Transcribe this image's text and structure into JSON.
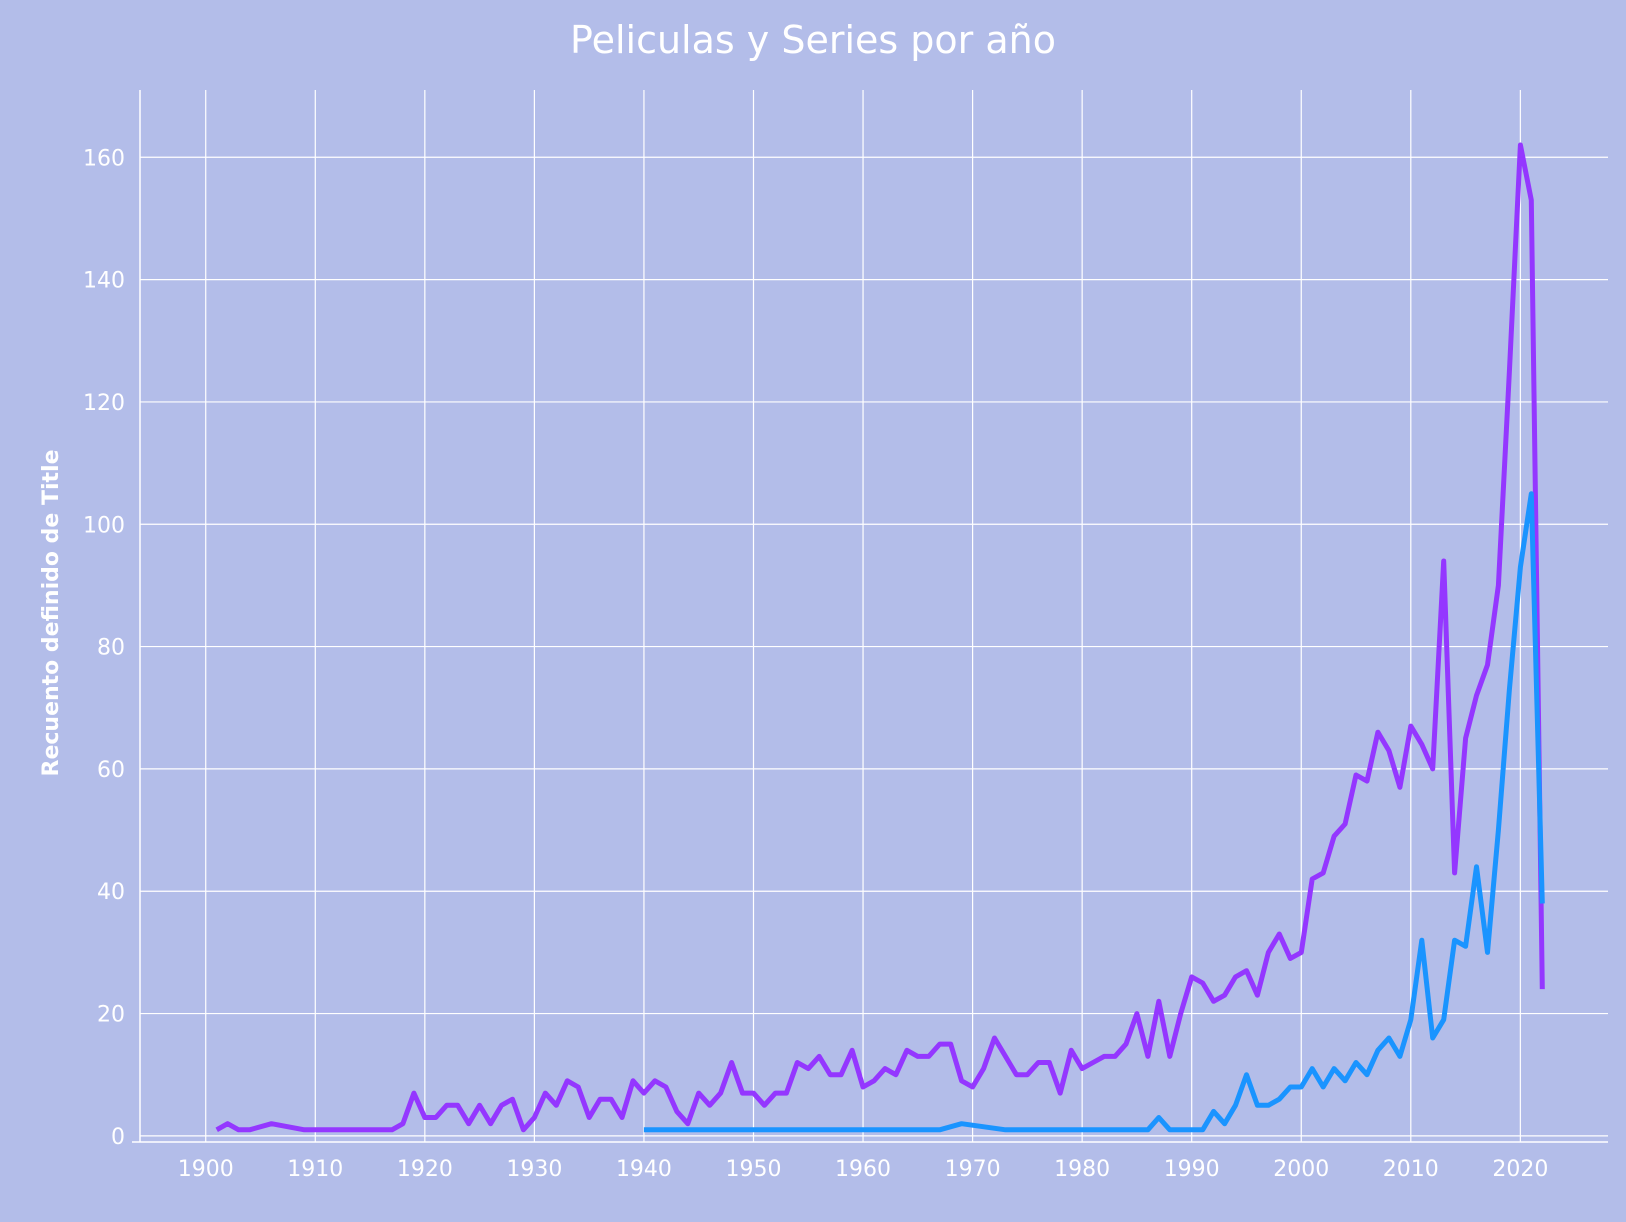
{
  "chart_data": {
    "type": "line",
    "title": "Peliculas y Series por año",
    "xlabel": "",
    "ylabel": "Recuento definido de Title",
    "xlim": [
      1894,
      2028
    ],
    "ylim": [
      -1,
      171
    ],
    "xticks": [
      1900,
      1910,
      1920,
      1930,
      1940,
      1950,
      1960,
      1970,
      1980,
      1990,
      2000,
      2010,
      2020
    ],
    "yticks": [
      0,
      20,
      40,
      60,
      80,
      100,
      120,
      140,
      160
    ],
    "grid": true,
    "legend": "none",
    "colors": {
      "background": "#b3bde9",
      "grid": "#ffffff",
      "text": "#ffffff"
    },
    "series": [
      {
        "color": "#9437ff",
        "points": [
          [
            1901,
            1
          ],
          [
            1902,
            2
          ],
          [
            1903,
            1
          ],
          [
            1904,
            1
          ],
          [
            1906,
            2
          ],
          [
            1909,
            1
          ],
          [
            1910,
            1
          ],
          [
            1915,
            1
          ],
          [
            1917,
            1
          ],
          [
            1918,
            2
          ],
          [
            1919,
            7
          ],
          [
            1920,
            3
          ],
          [
            1921,
            3
          ],
          [
            1922,
            5
          ],
          [
            1923,
            5
          ],
          [
            1924,
            2
          ],
          [
            1925,
            5
          ],
          [
            1926,
            2
          ],
          [
            1927,
            5
          ],
          [
            1928,
            6
          ],
          [
            1929,
            1
          ],
          [
            1930,
            3
          ],
          [
            1931,
            7
          ],
          [
            1932,
            5
          ],
          [
            1933,
            9
          ],
          [
            1934,
            8
          ],
          [
            1935,
            3
          ],
          [
            1936,
            6
          ],
          [
            1937,
            6
          ],
          [
            1938,
            3
          ],
          [
            1939,
            9
          ],
          [
            1940,
            7
          ],
          [
            1941,
            9
          ],
          [
            1942,
            8
          ],
          [
            1943,
            4
          ],
          [
            1944,
            2
          ],
          [
            1945,
            7
          ],
          [
            1946,
            5
          ],
          [
            1947,
            7
          ],
          [
            1948,
            12
          ],
          [
            1949,
            7
          ],
          [
            1950,
            7
          ],
          [
            1951,
            5
          ],
          [
            1952,
            7
          ],
          [
            1953,
            7
          ],
          [
            1954,
            12
          ],
          [
            1955,
            11
          ],
          [
            1956,
            13
          ],
          [
            1957,
            10
          ],
          [
            1958,
            10
          ],
          [
            1959,
            14
          ],
          [
            1960,
            8
          ],
          [
            1961,
            9
          ],
          [
            1962,
            11
          ],
          [
            1963,
            10
          ],
          [
            1964,
            14
          ],
          [
            1965,
            13
          ],
          [
            1966,
            13
          ],
          [
            1967,
            15
          ],
          [
            1968,
            15
          ],
          [
            1969,
            9
          ],
          [
            1970,
            8
          ],
          [
            1971,
            11
          ],
          [
            1972,
            16
          ],
          [
            1973,
            13
          ],
          [
            1974,
            10
          ],
          [
            1975,
            10
          ],
          [
            1976,
            12
          ],
          [
            1977,
            12
          ],
          [
            1978,
            7
          ],
          [
            1979,
            14
          ],
          [
            1980,
            11
          ],
          [
            1981,
            12
          ],
          [
            1982,
            13
          ],
          [
            1983,
            13
          ],
          [
            1984,
            15
          ],
          [
            1985,
            20
          ],
          [
            1986,
            13
          ],
          [
            1987,
            22
          ],
          [
            1988,
            13
          ],
          [
            1989,
            20
          ],
          [
            1990,
            26
          ],
          [
            1991,
            25
          ],
          [
            1992,
            22
          ],
          [
            1993,
            23
          ],
          [
            1994,
            26
          ],
          [
            1995,
            27
          ],
          [
            1996,
            23
          ],
          [
            1997,
            30
          ],
          [
            1998,
            33
          ],
          [
            1999,
            29
          ],
          [
            2000,
            30
          ],
          [
            2001,
            42
          ],
          [
            2002,
            43
          ],
          [
            2003,
            49
          ],
          [
            2004,
            51
          ],
          [
            2005,
            59
          ],
          [
            2006,
            58
          ],
          [
            2007,
            66
          ],
          [
            2008,
            63
          ],
          [
            2009,
            57
          ],
          [
            2010,
            67
          ],
          [
            2011,
            64
          ],
          [
            2012,
            60
          ],
          [
            2013,
            94
          ],
          [
            2014,
            43
          ],
          [
            2015,
            65
          ],
          [
            2016,
            72
          ],
          [
            2017,
            77
          ],
          [
            2018,
            90
          ],
          [
            2019,
            125
          ],
          [
            2020,
            162
          ],
          [
            2021,
            153
          ],
          [
            2022,
            24
          ]
        ]
      },
      {
        "color": "#1a94ff",
        "points": [
          [
            1940,
            1
          ],
          [
            1967,
            1
          ],
          [
            1969,
            2
          ],
          [
            1973,
            1
          ],
          [
            1986,
            1
          ],
          [
            1987,
            3
          ],
          [
            1988,
            1
          ],
          [
            1991,
            1
          ],
          [
            1992,
            4
          ],
          [
            1993,
            2
          ],
          [
            1994,
            5
          ],
          [
            1995,
            10
          ],
          [
            1996,
            5
          ],
          [
            1997,
            5
          ],
          [
            1998,
            6
          ],
          [
            1999,
            8
          ],
          [
            2000,
            8
          ],
          [
            2001,
            11
          ],
          [
            2002,
            8
          ],
          [
            2003,
            11
          ],
          [
            2004,
            9
          ],
          [
            2005,
            12
          ],
          [
            2006,
            10
          ],
          [
            2007,
            14
          ],
          [
            2008,
            16
          ],
          [
            2009,
            13
          ],
          [
            2010,
            19
          ],
          [
            2011,
            32
          ],
          [
            2012,
            16
          ],
          [
            2013,
            19
          ],
          [
            2014,
            32
          ],
          [
            2015,
            31
          ],
          [
            2016,
            44
          ],
          [
            2017,
            30
          ],
          [
            2018,
            50
          ],
          [
            2019,
            73
          ],
          [
            2020,
            93
          ],
          [
            2021,
            105
          ],
          [
            2022,
            38
          ]
        ]
      }
    ]
  }
}
